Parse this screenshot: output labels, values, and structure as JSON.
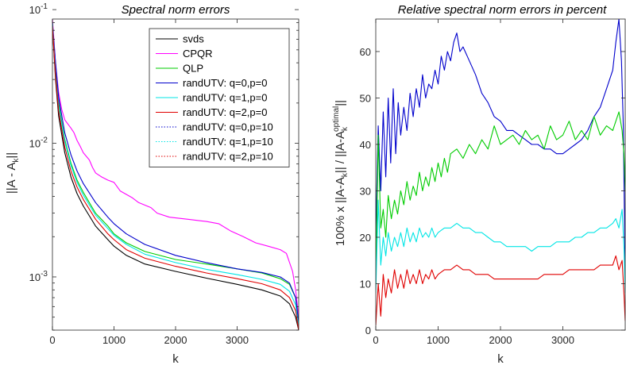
{
  "chart_data": [
    {
      "type": "line",
      "title": "Spectral norm errors",
      "xlabel": "k",
      "ylabel": "||A - A_k||",
      "ylabel_parts": {
        "main": "||A - A",
        "sub": "k",
        "tail": "||"
      },
      "yscale": "log",
      "xlim": [
        0,
        4000
      ],
      "ylim": [
        0.0004,
        0.085
      ],
      "xticks": [
        0,
        1000,
        2000,
        3000
      ],
      "xtick_labels": [
        "0",
        "1000",
        "2000",
        "3000"
      ],
      "yticks": [
        0.001,
        0.01,
        0.1
      ],
      "ytick_labels": [
        "10-3",
        "10-2",
        "10-1"
      ],
      "legend": [
        {
          "name": "svds",
          "color": "#000000",
          "dash": "solid"
        },
        {
          "name": "CPQR",
          "color": "#ff00ff",
          "dash": "solid"
        },
        {
          "name": "QLP",
          "color": "#00cc00",
          "dash": "solid"
        },
        {
          "name": "randUTV: q=0,p=0",
          "color": "#0000cc",
          "dash": "solid"
        },
        {
          "name": "randUTV: q=1,p=0",
          "color": "#00e5e5",
          "dash": "solid"
        },
        {
          "name": "randUTV: q=2,p=0",
          "color": "#e00000",
          "dash": "solid"
        },
        {
          "name": "randUTV: q=0,p=10",
          "color": "#0000cc",
          "dash": "dotted"
        },
        {
          "name": "randUTV: q=1,p=10",
          "color": "#00e5e5",
          "dash": "dotted"
        },
        {
          "name": "randUTV: q=2,p=10",
          "color": "#e00000",
          "dash": "dotted"
        }
      ],
      "series": [
        {
          "name": "svds",
          "color": "#000000",
          "dash": "solid",
          "x": [
            0,
            50,
            100,
            200,
            300,
            400,
            500,
            700,
            900,
            1000,
            1200,
            1500,
            2000,
            2500,
            3000,
            3400,
            3700,
            3850,
            3950,
            4000
          ],
          "y": [
            0.075,
            0.03,
            0.016,
            0.0085,
            0.0056,
            0.0042,
            0.0034,
            0.0024,
            0.0019,
            0.0017,
            0.00145,
            0.00125,
            0.0011,
            0.00098,
            0.00088,
            0.0008,
            0.00072,
            0.00063,
            0.0005,
            0.0004
          ]
        },
        {
          "name": "CPQR",
          "color": "#ff00ff",
          "dash": "solid",
          "x": [
            0,
            50,
            100,
            150,
            200,
            300,
            350,
            400,
            450,
            500,
            600,
            650,
            700,
            800,
            900,
            1000,
            1100,
            1300,
            1400,
            1600,
            1700,
            1900,
            2200,
            2500,
            2700,
            2900,
            3100,
            3300,
            3500,
            3700,
            3800,
            3900,
            3950,
            4000
          ],
          "y": [
            0.085,
            0.04,
            0.024,
            0.018,
            0.015,
            0.013,
            0.012,
            0.0105,
            0.0095,
            0.0085,
            0.0075,
            0.0066,
            0.006,
            0.0056,
            0.0053,
            0.0051,
            0.0044,
            0.0039,
            0.0036,
            0.0033,
            0.003,
            0.0028,
            0.0027,
            0.0026,
            0.0025,
            0.0022,
            0.002,
            0.0018,
            0.0017,
            0.0016,
            0.0015,
            0.0011,
            0.0008,
            0.0005
          ]
        },
        {
          "name": "QLP",
          "color": "#00cc00",
          "dash": "solid",
          "x": [
            0,
            50,
            100,
            200,
            300,
            400,
            500,
            700,
            900,
            1000,
            1200,
            1500,
            2000,
            2500,
            3000,
            3400,
            3700,
            3850,
            3950,
            4000
          ],
          "y": [
            0.08,
            0.036,
            0.02,
            0.0107,
            0.0071,
            0.0053,
            0.0043,
            0.003,
            0.0024,
            0.0021,
            0.0018,
            0.00155,
            0.00135,
            0.00125,
            0.00115,
            0.00107,
            0.00097,
            0.00088,
            0.0007,
            0.00045
          ]
        },
        {
          "name": "randUTV: q=0,p=0",
          "color": "#0000cc",
          "dash": "solid",
          "x": [
            0,
            50,
            100,
            200,
            300,
            400,
            500,
            700,
            900,
            1000,
            1200,
            1500,
            2000,
            2500,
            3000,
            3400,
            3700,
            3850,
            3950,
            4000
          ],
          "y": [
            0.08,
            0.04,
            0.022,
            0.012,
            0.0082,
            0.0062,
            0.005,
            0.0036,
            0.0028,
            0.0025,
            0.0021,
            0.00175,
            0.00145,
            0.00128,
            0.00115,
            0.00108,
            0.001,
            0.0009,
            0.0007,
            0.00045
          ]
        },
        {
          "name": "randUTV: q=1,p=0",
          "color": "#00e5e5",
          "dash": "solid",
          "x": [
            0,
            50,
            100,
            200,
            300,
            400,
            500,
            700,
            900,
            1000,
            1200,
            1500,
            2000,
            2500,
            3000,
            3400,
            3700,
            3850,
            3950,
            4000
          ],
          "y": [
            0.078,
            0.034,
            0.019,
            0.0103,
            0.0068,
            0.0051,
            0.0041,
            0.0029,
            0.0023,
            0.00205,
            0.00175,
            0.00148,
            0.00128,
            0.00114,
            0.00104,
            0.00096,
            0.00088,
            0.00078,
            0.00062,
            0.00042
          ]
        },
        {
          "name": "randUTV: q=2,p=0",
          "color": "#e00000",
          "dash": "solid",
          "x": [
            0,
            50,
            100,
            200,
            300,
            400,
            500,
            700,
            900,
            1000,
            1200,
            1500,
            2000,
            2500,
            3000,
            3400,
            3700,
            3850,
            3950,
            4000
          ],
          "y": [
            0.076,
            0.032,
            0.0175,
            0.0094,
            0.0062,
            0.0047,
            0.0038,
            0.0027,
            0.0021,
            0.0019,
            0.0016,
            0.00138,
            0.0012,
            0.00107,
            0.00097,
            0.00089,
            0.0008,
            0.0007,
            0.00056,
            0.0004
          ]
        }
      ]
    },
    {
      "type": "line",
      "title": "Relative spectral norm errors in percent",
      "xlabel": "k",
      "ylabel": "100% x ||A-A_k|| / ||A-A_k^optimal||",
      "ylabel_parts": {
        "a": "100% x ||A-A",
        "sub1": "k",
        "b": "|| / ||A-A",
        "sub2": "k",
        "sup2": "optimal",
        "c": "||"
      },
      "xlim": [
        0,
        4000
      ],
      "ylim": [
        0,
        67
      ],
      "xticks": [
        0,
        1000,
        2000,
        3000
      ],
      "xtick_labels": [
        "0",
        "1000",
        "2000",
        "3000"
      ],
      "yticks": [
        0,
        10,
        20,
        30,
        40,
        50,
        60
      ],
      "ytick_labels": [
        "0",
        "10",
        "20",
        "30",
        "40",
        "50",
        "60"
      ],
      "series": [
        {
          "name": "randUTV: q=0,p=0",
          "color": "#0000cc",
          "dash": "solid",
          "x": [
            0,
            40,
            80,
            120,
            160,
            200,
            240,
            280,
            320,
            360,
            400,
            450,
            500,
            550,
            600,
            650,
            700,
            750,
            800,
            850,
            900,
            950,
            1000,
            1050,
            1100,
            1150,
            1200,
            1250,
            1300,
            1350,
            1400,
            1500,
            1600,
            1700,
            1800,
            1900,
            2000,
            2100,
            2200,
            2300,
            2400,
            2500,
            2600,
            2700,
            2800,
            2900,
            3000,
            3100,
            3200,
            3300,
            3400,
            3500,
            3600,
            3700,
            3800,
            3850,
            3900,
            3940,
            3970,
            4000
          ],
          "y": [
            20,
            44,
            30,
            47,
            33,
            50,
            36,
            52,
            38,
            49,
            42,
            48,
            43,
            51,
            46,
            52,
            48,
            55,
            50,
            53,
            52,
            56,
            53,
            59,
            56,
            60,
            58,
            62,
            64,
            60,
            61,
            58,
            55,
            51,
            49,
            46,
            45,
            43,
            43,
            42,
            41,
            40,
            40,
            39,
            39,
            38,
            38,
            39,
            40,
            41,
            43,
            46,
            48,
            52,
            56,
            62,
            67,
            58,
            44,
            12
          ]
        },
        {
          "name": "QLP",
          "color": "#00cc00",
          "dash": "solid",
          "x": [
            0,
            40,
            80,
            120,
            160,
            200,
            250,
            300,
            350,
            400,
            450,
            500,
            550,
            600,
            650,
            700,
            750,
            800,
            850,
            900,
            950,
            1000,
            1050,
            1100,
            1150,
            1200,
            1300,
            1400,
            1500,
            1600,
            1700,
            1800,
            1900,
            2000,
            2100,
            2200,
            2300,
            2400,
            2500,
            2600,
            2700,
            2800,
            2900,
            3000,
            3100,
            3200,
            3300,
            3400,
            3500,
            3600,
            3700,
            3800,
            3900,
            3950,
            3980,
            4000
          ],
          "y": [
            10,
            42,
            22,
            26,
            20,
            29,
            24,
            28,
            25,
            30,
            27,
            32,
            28,
            31,
            29,
            34,
            30,
            33,
            31,
            35,
            32,
            36,
            33,
            37,
            34,
            38,
            39,
            37,
            40,
            38,
            41,
            39,
            44,
            40,
            41,
            42,
            40,
            43,
            41,
            42,
            39,
            44,
            41,
            42,
            45,
            41,
            43,
            41,
            46,
            42,
            44,
            43,
            47,
            43,
            38,
            30
          ]
        },
        {
          "name": "randUTV: q=1,p=0",
          "color": "#00e5e5",
          "dash": "solid",
          "x": [
            0,
            40,
            80,
            120,
            160,
            200,
            250,
            300,
            350,
            400,
            450,
            500,
            550,
            600,
            650,
            700,
            750,
            800,
            850,
            900,
            950,
            1000,
            1100,
            1200,
            1300,
            1400,
            1500,
            1600,
            1700,
            1800,
            1900,
            2000,
            2100,
            2200,
            2300,
            2400,
            2500,
            2600,
            2700,
            2800,
            2900,
            3000,
            3100,
            3200,
            3300,
            3400,
            3500,
            3600,
            3700,
            3800,
            3850,
            3900,
            3950,
            3980,
            4000
          ],
          "y": [
            8,
            28,
            14,
            20,
            16,
            21,
            17,
            20,
            18,
            21,
            18,
            22,
            19,
            21,
            19,
            22,
            20,
            21,
            20,
            22,
            20,
            21,
            22,
            22,
            23,
            22,
            22,
            21,
            21,
            20,
            19,
            19,
            18,
            18,
            18,
            18,
            17,
            18,
            18,
            18,
            19,
            19,
            19,
            20,
            20,
            21,
            21,
            22,
            22,
            23,
            24,
            22,
            26,
            18,
            8
          ]
        },
        {
          "name": "randUTV: q=2,p=0",
          "color": "#e00000",
          "dash": "solid",
          "x": [
            0,
            40,
            80,
            120,
            160,
            200,
            250,
            300,
            350,
            400,
            450,
            500,
            550,
            600,
            650,
            700,
            750,
            800,
            850,
            900,
            950,
            1000,
            1100,
            1200,
            1300,
            1400,
            1500,
            1600,
            1700,
            1800,
            1900,
            2000,
            2100,
            2200,
            2300,
            2400,
            2500,
            2600,
            2700,
            2800,
            2900,
            3000,
            3100,
            3200,
            3300,
            3400,
            3500,
            3600,
            3700,
            3800,
            3850,
            3900,
            3950,
            3980,
            4000
          ],
          "y": [
            1,
            10,
            3,
            12,
            7,
            11,
            8,
            13,
            9,
            12,
            9,
            13,
            10,
            12,
            10,
            13,
            10,
            12,
            11,
            13,
            11,
            12,
            13,
            13,
            14,
            13,
            13,
            12,
            12,
            12,
            11,
            11,
            11,
            11,
            11,
            11,
            11,
            11,
            12,
            12,
            12,
            12,
            13,
            13,
            13,
            13,
            13,
            14,
            14,
            14,
            16,
            13,
            15,
            8,
            2
          ]
        }
      ]
    }
  ]
}
